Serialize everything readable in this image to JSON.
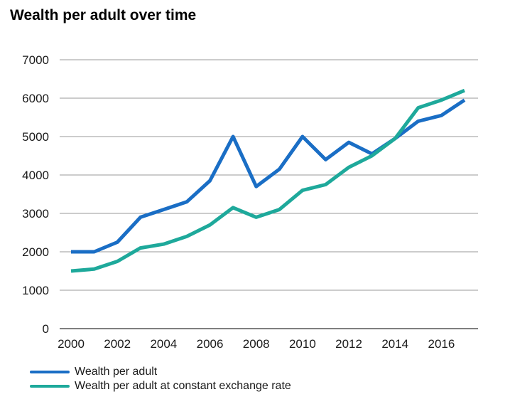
{
  "page": {
    "title": "Wealth per adult over time"
  },
  "chart_data": {
    "type": "line",
    "title": "Wealth per adult over time",
    "x": [
      2000,
      2001,
      2002,
      2003,
      2004,
      2005,
      2006,
      2007,
      2008,
      2009,
      2010,
      2011,
      2012,
      2013,
      2014,
      2015,
      2016,
      2017
    ],
    "series": [
      {
        "name": "Wealth per adult",
        "color": "#1a6ec5",
        "values": [
          2000,
          2000,
          2250,
          2900,
          3100,
          3300,
          3850,
          5000,
          3700,
          4150,
          5000,
          4400,
          4850,
          4550,
          4950,
          5400,
          5550,
          5950
        ]
      },
      {
        "name": "Wealth per adult at constant exchange rate",
        "color": "#1ea99b",
        "values": [
          1500,
          1550,
          1750,
          2100,
          2200,
          2400,
          2700,
          3150,
          2900,
          3100,
          3600,
          3750,
          4200,
          4500,
          4950,
          5750,
          5950,
          6200
        ]
      }
    ],
    "ylim": [
      0,
      7000
    ],
    "ytick_step": 1000,
    "ytick_labels": [
      "0",
      "1000",
      "2000",
      "3000",
      "4000",
      "5000",
      "6000",
      "7000"
    ],
    "xtick_labels": [
      "2000",
      "2002",
      "2004",
      "2006",
      "2008",
      "2010",
      "2012",
      "2014",
      "2016"
    ],
    "grid": true,
    "legend_position": "bottom-left",
    "colors": {
      "axis": "#7f7f7f",
      "grid": "#999999",
      "text": "#1a1a1a"
    }
  }
}
